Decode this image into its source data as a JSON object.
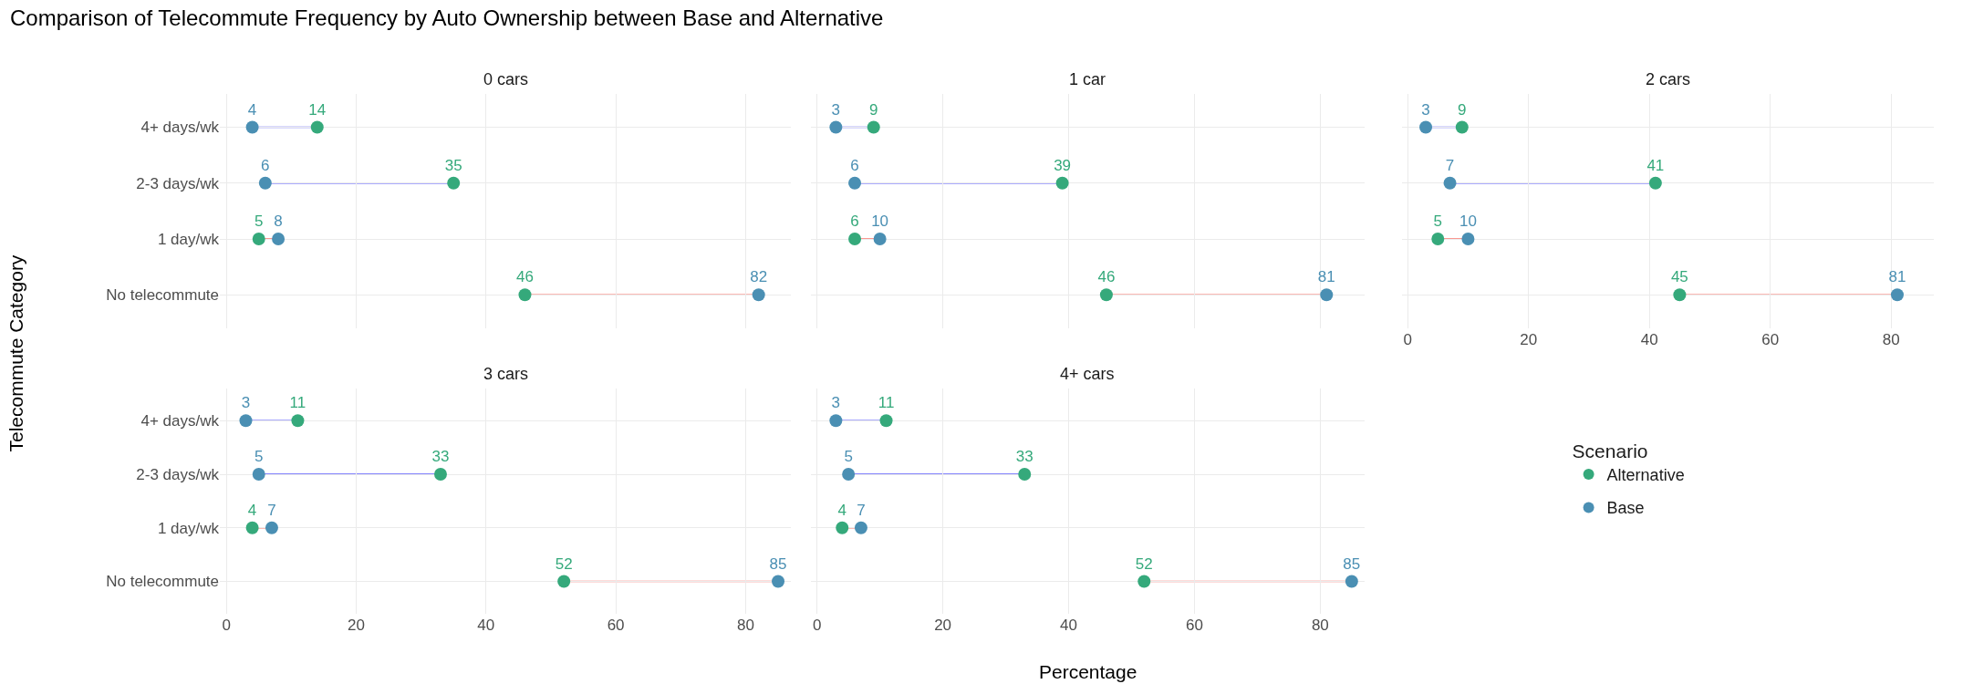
{
  "chart_data": [
    {
      "type": "scatter",
      "title": "0 cars",
      "legend_title": "Scenario",
      "legend": "right",
      "annotations": [
        "Comparison of Telecommute Frequency by Auto Ownership between Base and Alternative"
      ],
      "ylabel": "Telecommute Category",
      "categories": [
        "4+ days/wk",
        "2-3 days/wk",
        "1 day/wk",
        "No telecommute"
      ],
      "orientation": "horizontal",
      "xlim": [
        -1,
        87
      ],
      "xticks": [
        0,
        20,
        40,
        60,
        80
      ],
      "grid": true,
      "tick_labels": "y",
      "data_labels": true,
      "marker": "circle",
      "series": [
        {
          "name": "Alternative",
          "color": "#35a97b",
          "values": [
            14,
            35,
            5,
            46
          ]
        },
        {
          "name": "Base",
          "color": "#4a8fb3",
          "values": [
            4,
            6,
            8,
            82
          ]
        }
      ]
    },
    {
      "type": "scatter",
      "title": "1 car",
      "categories": [
        "4+ days/wk",
        "2-3 days/wk",
        "1 day/wk",
        "No telecommute"
      ],
      "orientation": "horizontal",
      "xlim": [
        -1,
        87
      ],
      "xticks": [
        0,
        20,
        40,
        60,
        80
      ],
      "grid": true,
      "tick_labels": false,
      "data_labels": true,
      "marker": "circle",
      "series": [
        {
          "name": "Alternative",
          "color": "#35a97b",
          "values": [
            9,
            39,
            6,
            46
          ]
        },
        {
          "name": "Base",
          "color": "#4a8fb3",
          "values": [
            3,
            6,
            10,
            81
          ]
        }
      ]
    },
    {
      "type": "scatter",
      "title": "2 cars",
      "categories": [
        "4+ days/wk",
        "2-3 days/wk",
        "1 day/wk",
        "No telecommute"
      ],
      "orientation": "horizontal",
      "xlim": [
        -1,
        87
      ],
      "xticks": [
        0,
        20,
        40,
        60,
        80
      ],
      "grid": true,
      "tick_labels": "x",
      "data_labels": true,
      "marker": "circle",
      "series": [
        {
          "name": "Alternative",
          "color": "#35a97b",
          "values": [
            9,
            41,
            5,
            45
          ]
        },
        {
          "name": "Base",
          "color": "#4a8fb3",
          "values": [
            3,
            7,
            10,
            81
          ]
        }
      ]
    },
    {
      "type": "scatter",
      "title": "3 cars",
      "categories": [
        "4+ days/wk",
        "2-3 days/wk",
        "1 day/wk",
        "No telecommute"
      ],
      "orientation": "horizontal",
      "xlim": [
        -1,
        87
      ],
      "xticks": [
        0,
        20,
        40,
        60,
        80
      ],
      "grid": true,
      "data_labels": true,
      "marker": "circle",
      "series": [
        {
          "name": "Alternative",
          "color": "#35a97b",
          "values": [
            11,
            33,
            4,
            52
          ]
        },
        {
          "name": "Base",
          "color": "#4a8fb3",
          "values": [
            3,
            5,
            7,
            85
          ]
        }
      ]
    },
    {
      "type": "scatter",
      "title": "4+ cars",
      "xlabel": "Percentage",
      "categories": [
        "4+ days/wk",
        "2-3 days/wk",
        "1 day/wk",
        "No telecommute"
      ],
      "orientation": "horizontal",
      "xlim": [
        -1,
        87
      ],
      "xticks": [
        0,
        20,
        40,
        60,
        80
      ],
      "grid": true,
      "tick_labels": "x",
      "data_labels": true,
      "marker": "circle",
      "series": [
        {
          "name": "Alternative",
          "color": "#35a97b",
          "values": [
            11,
            33,
            4,
            52
          ]
        },
        {
          "name": "Base",
          "color": "#4a8fb3",
          "values": [
            3,
            5,
            7,
            85
          ]
        }
      ]
    }
  ]
}
